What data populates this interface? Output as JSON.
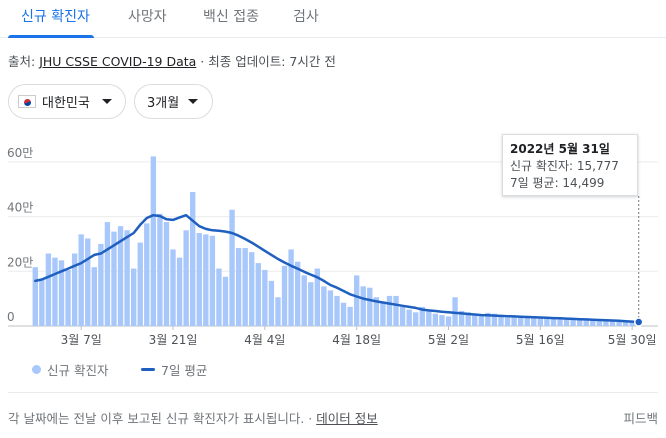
{
  "tabs": [
    {
      "label": "신규 확진자",
      "active": true
    },
    {
      "label": "사망자",
      "active": false
    },
    {
      "label": "백신 접종",
      "active": false
    },
    {
      "label": "검사",
      "active": false
    }
  ],
  "source": {
    "prefix": "출처: ",
    "link": "JHU CSSE COVID-19 Data",
    "suffix": " · 최종 업데이트: 7시간 전"
  },
  "filters": {
    "region": "대한민국",
    "region_flag": "korea-flag-icon",
    "period": "3개월"
  },
  "tooltip": {
    "date": "2022년 5월 31일",
    "cases_label": "신규 확진자: 15,777",
    "avg_label": "7일 평균: 14,499"
  },
  "legend": {
    "bars": "신규 확진자",
    "line": "7일 평균"
  },
  "footer": {
    "text": "각 날짜에는 전날 이후 보고된 신규 확진자가 표시됩니다.",
    "separator": " · ",
    "link": "데이터 정보",
    "feedback": "피드백"
  },
  "colors": {
    "bar": "#a8c7fa",
    "line": "#1f5fbf",
    "accent": "#1a73e8"
  },
  "chart_data": {
    "type": "bar",
    "title": "",
    "xlabel": "",
    "ylabel": "",
    "y_ticks": [
      "0",
      "20만",
      "40만",
      "60만"
    ],
    "y_tick_values": [
      0,
      200000,
      400000,
      600000
    ],
    "ylim": [
      0,
      680000
    ],
    "x_ticks": [
      "3월 7일",
      "3월 21일",
      "4월 4일",
      "4월 18일",
      "5월 2일",
      "5월 16일",
      "5월 30일"
    ],
    "x_tick_indices": [
      7,
      21,
      35,
      49,
      63,
      77,
      91
    ],
    "grid": true,
    "legend_position": "bottom-left",
    "series": [
      {
        "name": "신규 확진자",
        "kind": "bar",
        "values": [
          215000,
          170000,
          265000,
          250000,
          240000,
          205000,
          265000,
          335000,
          320000,
          215000,
          300000,
          380000,
          345000,
          365000,
          350000,
          210000,
          305000,
          375000,
          620000,
          410000,
          380000,
          280000,
          250000,
          350000,
          490000,
          340000,
          335000,
          330000,
          210000,
          180000,
          425000,
          285000,
          285000,
          270000,
          230000,
          205000,
          165000,
          105000,
          220000,
          280000,
          235000,
          185000,
          160000,
          210000,
          145000,
          130000,
          110000,
          85000,
          70000,
          185000,
          145000,
          140000,
          105000,
          90000,
          110000,
          110000,
          70000,
          60000,
          50000,
          70000,
          60000,
          45000,
          40000,
          35000,
          105000,
          55000,
          50000,
          40000,
          35000,
          48000,
          45000,
          35000,
          30000,
          35000,
          30000,
          37000,
          29000,
          28000,
          30000,
          30000,
          26000,
          24000,
          23000,
          22000,
          21000,
          20000,
          23000,
          20000,
          18000,
          16000,
          15000,
          15000,
          15777
        ],
        "highlight_index": 92
      },
      {
        "name": "7일 평균",
        "kind": "line",
        "values": [
          165000,
          170000,
          180000,
          190000,
          200000,
          210000,
          220000,
          230000,
          245000,
          260000,
          265000,
          280000,
          295000,
          310000,
          325000,
          340000,
          370000,
          395000,
          405000,
          402000,
          390000,
          388000,
          397000,
          405000,
          385000,
          365000,
          355000,
          350000,
          348000,
          345000,
          340000,
          330000,
          318000,
          305000,
          290000,
          275000,
          260000,
          245000,
          232000,
          220000,
          210000,
          198000,
          188000,
          178000,
          165000,
          150000,
          140000,
          128000,
          116000,
          108000,
          100000,
          95000,
          90000,
          86000,
          82000,
          78000,
          74000,
          70000,
          66000,
          60000,
          57000,
          55000,
          52000,
          50000,
          48000,
          46000,
          44000,
          42000,
          40000,
          39000,
          38000,
          37000,
          36000,
          35000,
          34000,
          33000,
          32000,
          31000,
          30000,
          29000,
          28000,
          27000,
          26000,
          25000,
          24000,
          23000,
          22000,
          21000,
          20000,
          19000,
          17500,
          16000,
          14499
        ],
        "highlight_index": 92
      }
    ]
  }
}
